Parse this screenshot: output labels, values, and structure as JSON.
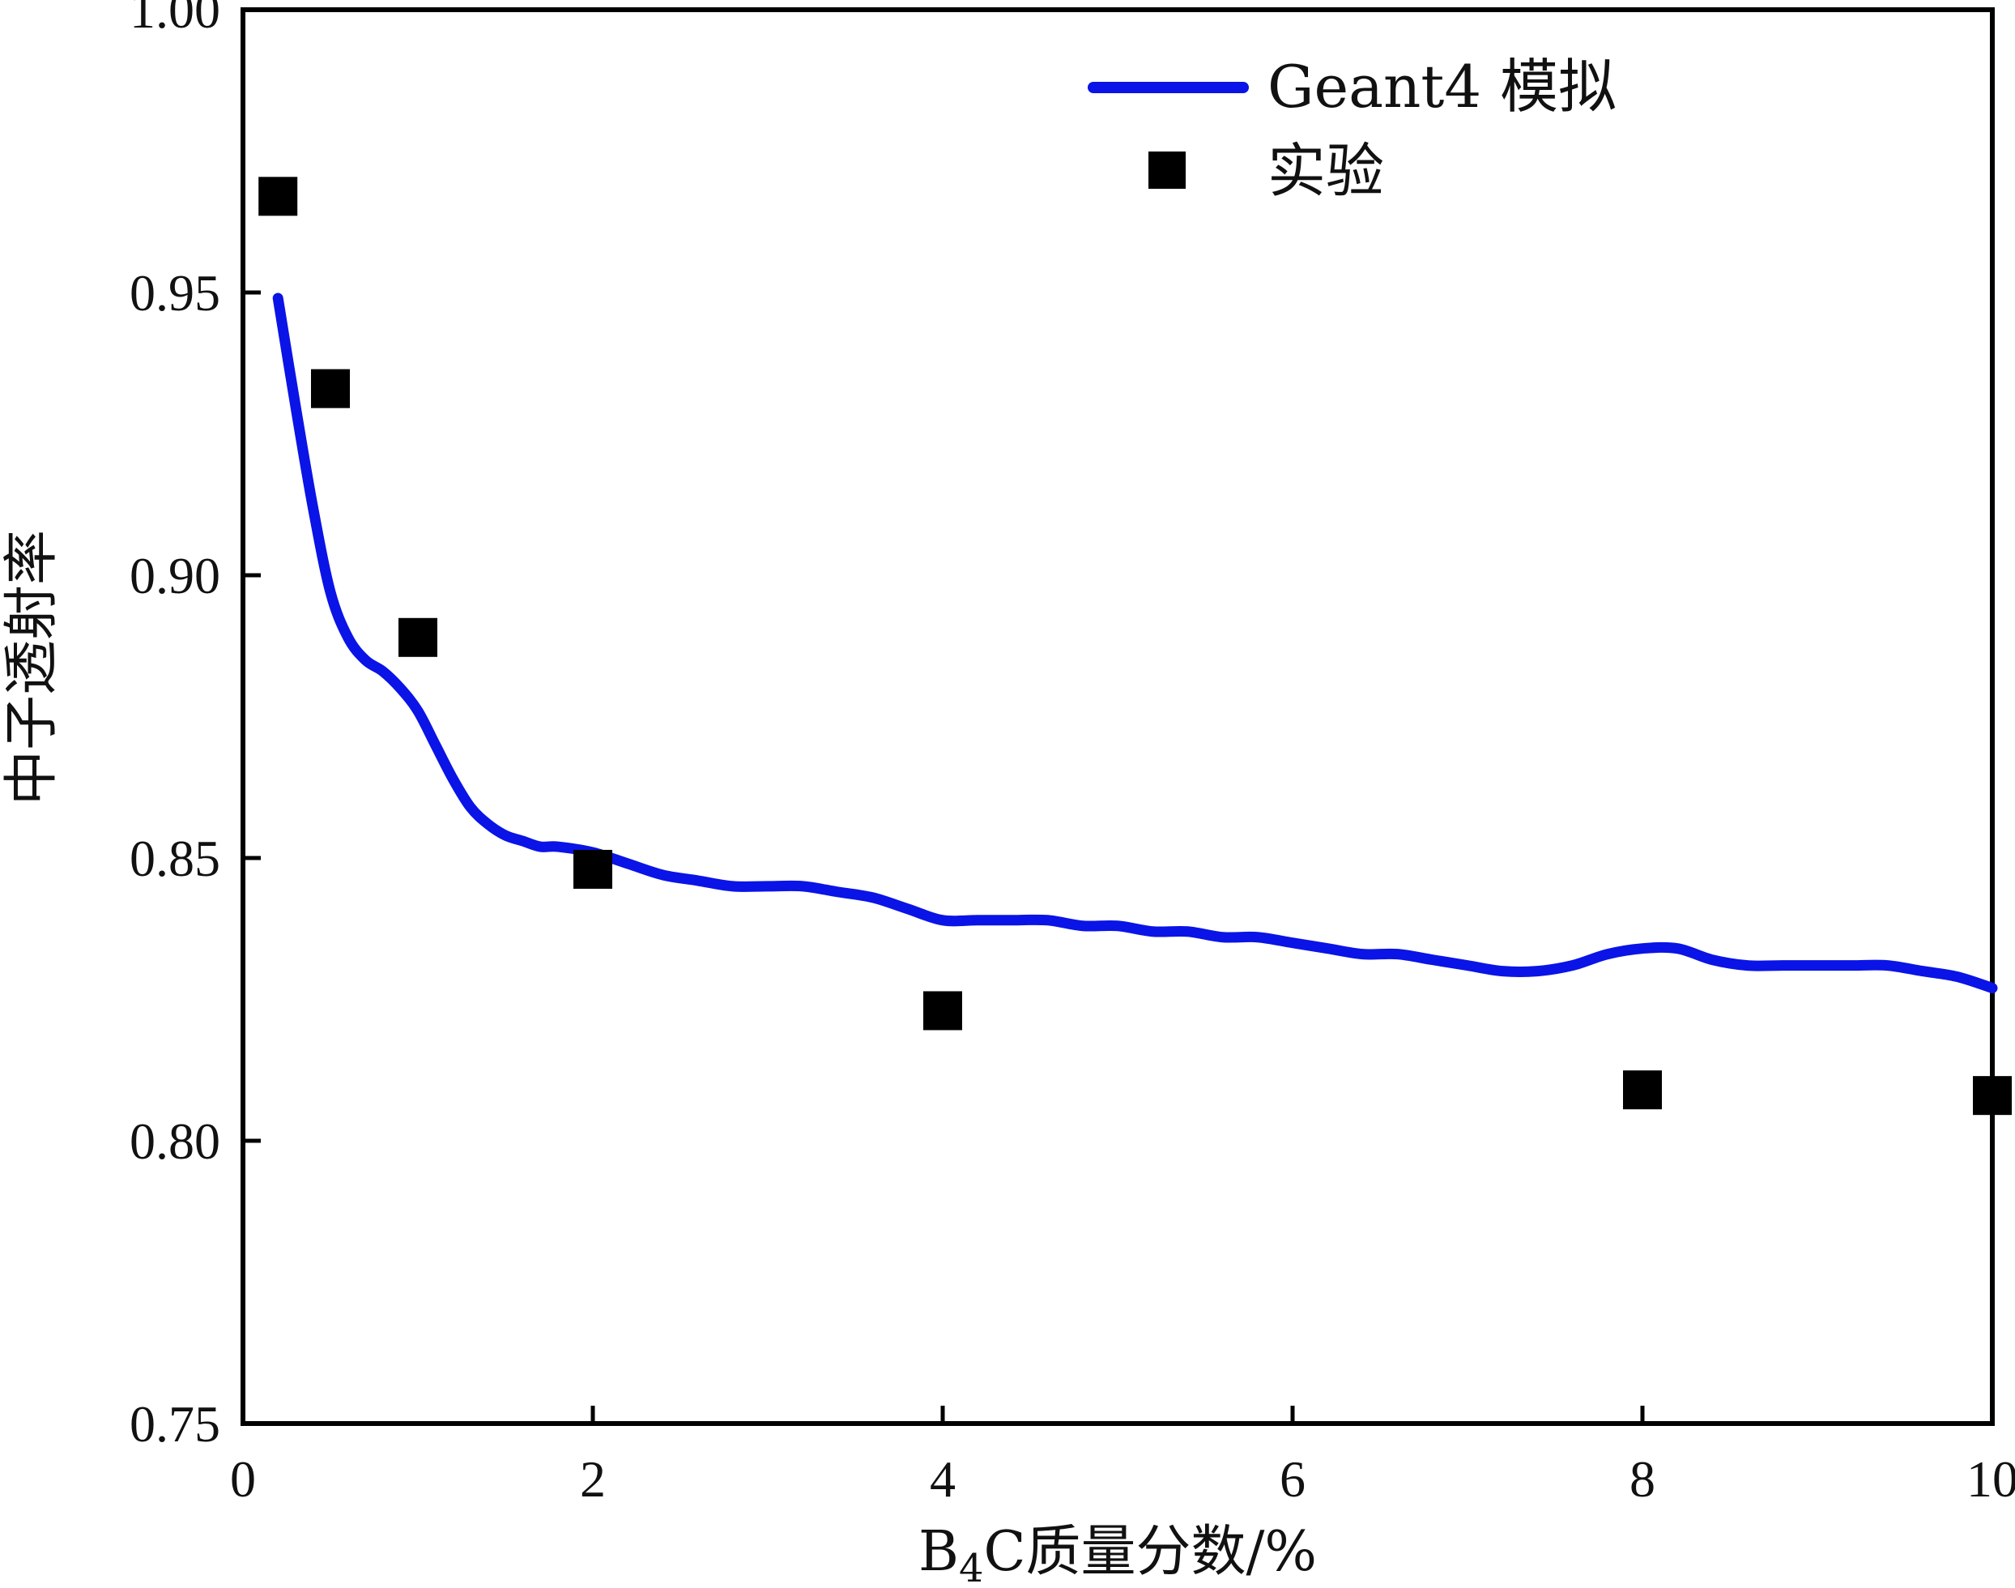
{
  "chart_data": {
    "type": "line",
    "xlabel_parts": {
      "pre": "B",
      "sub": "4",
      "post": "C质量分数/%"
    },
    "ylabel": "中子透射率",
    "xlim": [
      0,
      10
    ],
    "ylim": [
      0.75,
      1.0
    ],
    "x_ticks": [
      0,
      2,
      4,
      6,
      8,
      10
    ],
    "x_tick_labels": [
      "0",
      "2",
      "4",
      "6",
      "8",
      "10"
    ],
    "y_ticks": [
      0.75,
      0.8,
      0.85,
      0.9,
      0.95,
      1.0
    ],
    "y_tick_labels": [
      "0.75",
      "0.80",
      "0.85",
      "0.90",
      "0.95",
      "1.00"
    ],
    "grid": false,
    "legend_position": "top-right",
    "colors": {
      "simulation": "#0a14e6",
      "experiment": "#000000",
      "axis": "#000000"
    },
    "series": [
      {
        "name": "Geant4 模拟",
        "kind": "line",
        "x": [
          0.2,
          0.3,
          0.4,
          0.5,
          0.6,
          0.7,
          0.8,
          0.9,
          1.0,
          1.1,
          1.2,
          1.3,
          1.4,
          1.5,
          1.6,
          1.7,
          1.8,
          2.0,
          2.2,
          2.4,
          2.6,
          2.8,
          3.0,
          3.2,
          3.4,
          3.6,
          3.8,
          4.0,
          4.2,
          4.4,
          4.6,
          4.8,
          5.0,
          5.2,
          5.4,
          5.6,
          5.8,
          6.0,
          6.2,
          6.4,
          6.6,
          6.8,
          7.0,
          7.2,
          7.4,
          7.6,
          7.8,
          8.0,
          8.2,
          8.4,
          8.6,
          8.8,
          9.0,
          9.2,
          9.4,
          9.6,
          9.8,
          10.0
        ],
        "y": [
          0.949,
          0.93,
          0.912,
          0.897,
          0.889,
          0.885,
          0.883,
          0.88,
          0.876,
          0.87,
          0.864,
          0.859,
          0.856,
          0.854,
          0.853,
          0.852,
          0.852,
          0.851,
          0.849,
          0.847,
          0.846,
          0.845,
          0.845,
          0.845,
          0.844,
          0.843,
          0.841,
          0.839,
          0.839,
          0.839,
          0.839,
          0.838,
          0.838,
          0.837,
          0.837,
          0.836,
          0.836,
          0.835,
          0.834,
          0.833,
          0.833,
          0.832,
          0.831,
          0.83,
          0.83,
          0.831,
          0.833,
          0.834,
          0.834,
          0.832,
          0.831,
          0.831,
          0.831,
          0.831,
          0.831,
          0.83,
          0.829,
          0.827
        ]
      },
      {
        "name": "实验",
        "kind": "scatter",
        "x": [
          0.2,
          0.5,
          1.0,
          2.0,
          4.0,
          8.0,
          10.0
        ],
        "y": [
          0.967,
          0.933,
          0.889,
          0.848,
          0.823,
          0.809,
          0.808
        ]
      }
    ]
  }
}
